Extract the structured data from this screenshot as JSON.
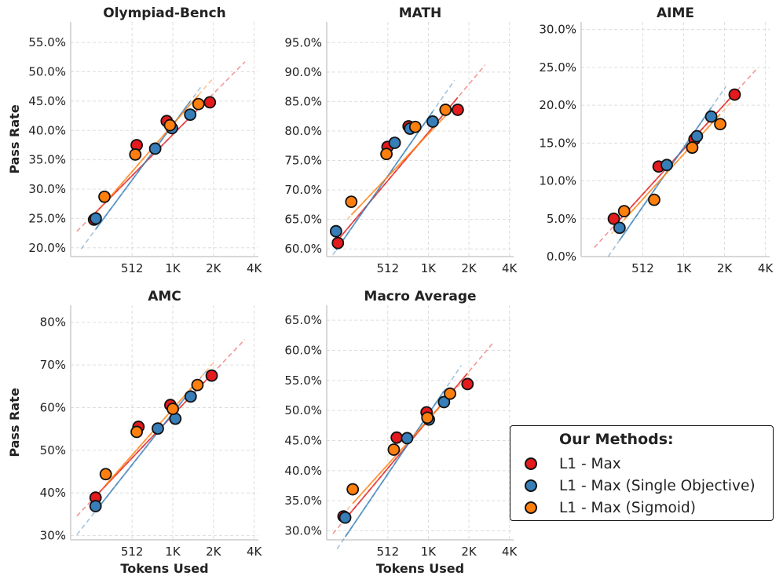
{
  "figure": {
    "y_axis_label": "Pass Rate",
    "x_axis_label": "Tokens Used"
  },
  "legend": {
    "title": "Our Methods:",
    "items": [
      {
        "label": "L1 - Max",
        "color": "#e41a1c"
      },
      {
        "label": "L1 - Max (Single Objective)",
        "color": "#377eb8"
      },
      {
        "label": "L1 - Max (Sigmoid)",
        "color": "#ff7f0e"
      }
    ]
  },
  "chart_data": [
    {
      "type": "scatter",
      "title": "Olympiad-Bench",
      "xscale": "log2",
      "xlim": [
        180,
        4400
      ],
      "ylim": [
        18.5,
        58.5
      ],
      "yticks": [
        20,
        25,
        30,
        35,
        40,
        45,
        50,
        55
      ],
      "ytick_labels": [
        "20.0%",
        "25.0%",
        "30.0%",
        "35.0%",
        "40.0%",
        "45.0%",
        "50.0%",
        "55.0%"
      ],
      "xticks": [
        512,
        1024,
        2048,
        4096
      ],
      "xtick_labels": [
        "512",
        "1K",
        "2K",
        "4K"
      ],
      "show_xlabel": false,
      "show_ylabel": true,
      "series": [
        {
          "name": "L1 - Max",
          "color": "#e41a1c",
          "x": [
            268,
            554,
            924,
            1927
          ],
          "y": [
            24.8,
            37.5,
            41.6,
            44.8
          ],
          "fit": [
            [
              200,
              22.8
            ],
            [
              3500,
              51.7
            ]
          ]
        },
        {
          "name": "L1 - Max (Single Objective)",
          "color": "#377eb8",
          "x": [
            276,
            759,
            1010,
            1378
          ],
          "y": [
            25.0,
            36.9,
            40.4,
            42.7
          ],
          "fit": [
            [
              215,
              19.8
            ],
            [
              1700,
              47.8
            ]
          ]
        },
        {
          "name": "L1 - Max (Sigmoid)",
          "color": "#ff7f0e",
          "x": [
            320,
            541,
            977,
            1586
          ],
          "y": [
            28.7,
            35.9,
            40.9,
            44.5
          ],
          "fit": [
            [
              252,
              24.8
            ],
            [
              2050,
              49.0
            ]
          ]
        }
      ]
    },
    {
      "type": "scatter",
      "title": "MATH",
      "xscale": "log2",
      "xlim": [
        180,
        4400
      ],
      "ylim": [
        58.7,
        98.5
      ],
      "yticks": [
        60,
        65,
        70,
        75,
        80,
        85,
        90,
        95
      ],
      "ytick_labels": [
        "60.0%",
        "65.0%",
        "70.0%",
        "75.0%",
        "80.0%",
        "85.0%",
        "90.0%",
        "95.0%"
      ],
      "xticks": [
        512,
        1024,
        2048,
        4096
      ],
      "xtick_labels": [
        "512",
        "1K",
        "2K",
        "4K"
      ],
      "show_xlabel": false,
      "show_ylabel": false,
      "series": [
        {
          "name": "L1 - Max",
          "color": "#e41a1c",
          "x": [
            218,
            509,
            730,
            1693
          ],
          "y": [
            61.0,
            77.3,
            80.8,
            83.6
          ],
          "fit": [
            [
              200,
              60.5
            ],
            [
              2700,
              91.2
            ]
          ]
        },
        {
          "name": "L1 - Max (Single Objective)",
          "color": "#377eb8",
          "x": [
            211,
            576,
            749,
            1103
          ],
          "y": [
            63.0,
            78.0,
            80.4,
            81.6
          ],
          "fit": [
            [
              200,
              59.0
            ],
            [
              1600,
              88.6
            ]
          ]
        },
        {
          "name": "L1 - Max (Sigmoid)",
          "color": "#ff7f0e",
          "x": [
            274,
            500,
            819,
            1373
          ],
          "y": [
            68.0,
            76.1,
            80.7,
            83.6
          ],
          "fit": [
            [
              255,
              65.0
            ],
            [
              1500,
              83.5
            ]
          ]
        }
      ]
    },
    {
      "type": "scatter",
      "title": "AIME",
      "xscale": "log2",
      "xlim": [
        180,
        4400
      ],
      "ylim": [
        0,
        31
      ],
      "yticks": [
        0,
        5,
        10,
        15,
        20,
        25,
        30
      ],
      "ytick_labels": [
        "0.0%",
        "5.0%",
        "10.0%",
        "15.0%",
        "20.0%",
        "25.0%",
        "30.0%"
      ],
      "xticks": [
        512,
        1024,
        2048,
        4096
      ],
      "xtick_labels": [
        "512",
        "1K",
        "2K",
        "4K"
      ],
      "show_xlabel": false,
      "show_ylabel": false,
      "series": [
        {
          "name": "L1 - Max",
          "color": "#e41a1c",
          "x": [
            313,
            669,
            1230,
            2431
          ],
          "y": [
            5.0,
            11.9,
            15.5,
            21.4
          ],
          "fit": [
            [
              225,
              1.2
            ],
            [
              3620,
              25.0
            ]
          ]
        },
        {
          "name": "L1 - Max (Single Objective)",
          "color": "#377eb8",
          "x": [
            345,
            769,
            1282,
            1632
          ],
          "y": [
            3.8,
            12.1,
            15.9,
            18.5
          ],
          "fit": [
            [
              285,
              0.0
            ],
            [
              2100,
              22.5
            ]
          ]
        },
        {
          "name": "L1 - Max (Sigmoid)",
          "color": "#ff7f0e",
          "x": [
            373,
            621,
            1184,
            1903
          ],
          "y": [
            6.0,
            7.5,
            14.4,
            17.5
          ],
          "fit": [
            [
              300,
              3.0
            ],
            [
              2450,
              21.0
            ]
          ]
        }
      ]
    },
    {
      "type": "scatter",
      "title": "AMC",
      "xscale": "log2",
      "xlim": [
        180,
        4400
      ],
      "ylim": [
        29,
        84
      ],
      "yticks": [
        30,
        40,
        50,
        60,
        70,
        80
      ],
      "ytick_labels": [
        "30%",
        "40%",
        "50%",
        "60%",
        "70%",
        "80%"
      ],
      "xticks": [
        512,
        1024,
        2048,
        4096
      ],
      "xtick_labels": [
        "512",
        "1K",
        "2K",
        "4K"
      ],
      "show_xlabel": true,
      "show_ylabel": true,
      "series": [
        {
          "name": "L1 - Max",
          "color": "#e41a1c",
          "x": [
            275,
            571,
            983,
            1987
          ],
          "y": [
            38.9,
            55.5,
            60.6,
            67.5
          ],
          "fit": [
            [
              200,
              34.6
            ],
            [
              3500,
              76.0
            ]
          ]
        },
        {
          "name": "L1 - Max (Single Objective)",
          "color": "#377eb8",
          "x": [
            275,
            794,
            1070,
            1389
          ],
          "y": [
            36.9,
            55.1,
            57.4,
            62.6
          ],
          "fit": [
            [
              200,
              30.2
            ],
            [
              1850,
              69.0
            ]
          ]
        },
        {
          "name": "L1 - Max (Sigmoid)",
          "color": "#ff7f0e",
          "x": [
            327,
            554,
            1025,
            1559
          ],
          "y": [
            44.4,
            54.3,
            59.7,
            65.3
          ],
          "fit": [
            [
              255,
              38.0
            ],
            [
              2050,
              70.5
            ]
          ]
        }
      ]
    },
    {
      "type": "scatter",
      "title": "Macro Average",
      "xscale": "log2",
      "xlim": [
        180,
        4400
      ],
      "ylim": [
        28.5,
        67.5
      ],
      "yticks": [
        30,
        35,
        40,
        45,
        50,
        55,
        60,
        65
      ],
      "ytick_labels": [
        "30.0%",
        "35.0%",
        "40.0%",
        "45.0%",
        "50.0%",
        "55.0%",
        "60.0%",
        "65.0%"
      ],
      "xticks": [
        512,
        1024,
        2048,
        4096
      ],
      "xtick_labels": [
        "512",
        "1K",
        "2K",
        "4K"
      ],
      "show_xlabel": true,
      "show_ylabel": false,
      "series": [
        {
          "name": "L1 - Max",
          "color": "#e41a1c",
          "x": [
            240,
            596,
            993,
            2000
          ],
          "y": [
            32.4,
            45.5,
            49.7,
            54.4
          ],
          "fit": [
            [
              200,
              29.5
            ],
            [
              3080,
              61.2
            ]
          ]
        },
        {
          "name": "L1 - Max (Single Objective)",
          "color": "#377eb8",
          "x": [
            247,
            712,
            1033,
            1338
          ],
          "y": [
            32.2,
            45.4,
            48.5,
            51.4
          ],
          "fit": [
            [
              215,
              27.0
            ],
            [
              1800,
              57.5
            ]
          ]
        },
        {
          "name": "L1 - Max (Sigmoid)",
          "color": "#ff7f0e",
          "x": [
            281,
            567,
            1007,
            1483
          ],
          "y": [
            36.9,
            43.5,
            48.8,
            52.8
          ],
          "fit": [
            [
              255,
              33.5
            ],
            [
              2050,
              56.0
            ]
          ]
        }
      ]
    }
  ]
}
